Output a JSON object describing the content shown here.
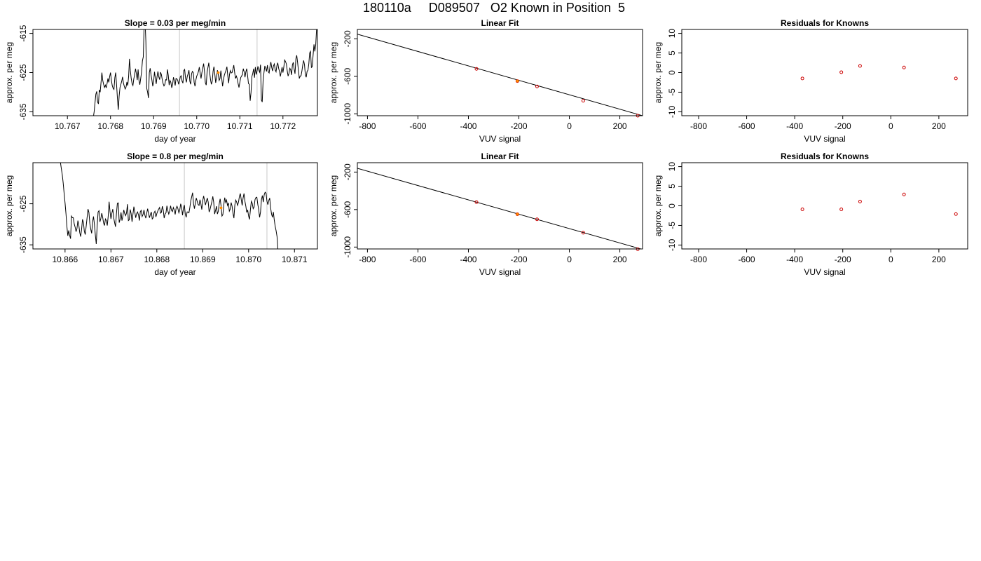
{
  "page_title": "180110a     D089507   O2 Known in Position  5",
  "colors": {
    "trace": "#000000",
    "marker": "#ff8c00",
    "point": "#cc0000",
    "vline": "#c8c8c8",
    "frame": "#000000"
  },
  "chart_data": [
    {
      "type": "line",
      "title": "Slope =  0.03  per meg/min",
      "xlabel": "day of year",
      "ylabel": "approx. per meg",
      "xlim": [
        10.7662,
        10.7728
      ],
      "ylim": [
        -636,
        -614
      ],
      "xticks": [
        "10.767",
        "10.768",
        "10.769",
        "10.770",
        "10.771",
        "10.772"
      ],
      "xtick_values": [
        10.767,
        10.768,
        10.769,
        10.77,
        10.771,
        10.772
      ],
      "yticks": [
        "-615",
        "-625",
        "-635"
      ],
      "ytick_values": [
        -615,
        -625,
        -635
      ],
      "vlines": [
        10.7696,
        10.7714
      ],
      "highlight_point": [
        10.7705,
        -625
      ],
      "series": [
        {
          "x_start": 10.7676,
          "x_step": 2e-05,
          "values": [
            -636.5,
            -635.0,
            -632.7,
            -630.5,
            -629.8,
            -632.5,
            -633.0,
            -629.4,
            -630.0,
            -627.5,
            -625.0,
            -627.0,
            -628.0,
            -628.8,
            -628.2,
            -628.9,
            -627.8,
            -626.5,
            -627.5,
            -626.0,
            -625.0,
            -627.0,
            -628.3,
            -629.0,
            -629.3,
            -626.3,
            -625.0,
            -628.0,
            -631.5,
            -634.5,
            -631.0,
            -628.8,
            -628.0,
            -627.2,
            -626.1,
            -627.7,
            -628.5,
            -629.2,
            -628.7,
            -627.4,
            -628.3,
            -626.0,
            -621.5,
            -624.5,
            -626.5,
            -627.8,
            -628.3,
            -626.6,
            -625.5,
            -624.0,
            -625.3,
            -626.9,
            -624.2,
            -627.0,
            -628.1,
            -626.5,
            -624.9,
            -622.0,
            -621.0,
            -613.0,
            -611.5,
            -617.0,
            -629.0,
            -630.0,
            -631.5,
            -625.0,
            -623.9,
            -625.6,
            -626.9,
            -628.5,
            -627.3,
            -624.8,
            -626.4,
            -627.9,
            -626.0,
            -624.7,
            -626.1,
            -626.8,
            -624.9,
            -625.5,
            -626.8,
            -627.8,
            -628.4,
            -628.0,
            -626.8,
            -626.9,
            -624.2,
            -625.7,
            -628.2,
            -627.0,
            -627.5,
            -628.9,
            -628.0,
            -626.2,
            -627.0,
            -628.3,
            -626.5,
            -626.6,
            -627.0,
            -628.0,
            -627.2,
            -626.0,
            -625.8,
            -627.2,
            -627.7,
            -624.5,
            -624.2,
            -626.4,
            -627.5,
            -626.0,
            -625.3,
            -624.4,
            -627.2,
            -628.0,
            -625.3,
            -624.7,
            -625.0,
            -627.5,
            -628.5,
            -626.9,
            -625.9,
            -625.4,
            -624.7,
            -623.6,
            -625.2,
            -626.5,
            -625.0,
            -623.8,
            -622.7,
            -624.7,
            -627.6,
            -628.2,
            -624.9,
            -623.7,
            -622.5,
            -625.0,
            -626.8,
            -628.0,
            -627.2,
            -624.6,
            -623.5,
            -625.5,
            -627.6,
            -626.2,
            -624.4,
            -625.5,
            -627.0,
            -626.5,
            -624.5,
            -626.5,
            -628.5,
            -626.8,
            -625.7,
            -625.0,
            -624.4,
            -623.5,
            -625.8,
            -627.7,
            -625.5,
            -624.5,
            -625.1,
            -625.0,
            -624.1,
            -623.1,
            -625.0,
            -626.5,
            -625.9,
            -626.6,
            -627.8,
            -628.8,
            -627.5,
            -626.3,
            -625.9,
            -625.5,
            -624.0,
            -624.8,
            -626.2,
            -624.8,
            -624.0,
            -625.8,
            -627.8,
            -628.0,
            -632.2,
            -630.0,
            -626.0,
            -625.2,
            -624.0,
            -626.3,
            -623.6,
            -625.5,
            -624.6,
            -623.4,
            -624.4,
            -624.9,
            -623.0,
            -632.0,
            -632.5,
            -627.0,
            -625.0,
            -623.3,
            -623.9,
            -624.7,
            -623.1,
            -624.8,
            -625.1,
            -623.4,
            -622.3,
            -623.7,
            -624.6,
            -623.3,
            -622.8,
            -624.3,
            -624.8,
            -623.2,
            -622.5,
            -623.9,
            -624.7,
            -626.0,
            -624.8,
            -623.6,
            -625.0,
            -623.6,
            -621.8,
            -622.2,
            -622.8,
            -624.6,
            -625.9,
            -625.2,
            -623.9,
            -624.3,
            -625.6,
            -623.0,
            -622.4,
            -624.1,
            -625.3,
            -621.5,
            -620.6,
            -622.4,
            -624.5,
            -626.5,
            -625.9,
            -625.8,
            -624.6,
            -623.0,
            -621.9,
            -623.0,
            -625.6,
            -626.2,
            -624.7,
            -624.4,
            -622.8,
            -620.0,
            -619.6,
            -623.7,
            -623.5,
            -620.5,
            -617.8,
            -619.6,
            -618.0,
            -614.0
          ]
        }
      ]
    },
    {
      "type": "scatter",
      "title": "Linear Fit",
      "xlabel": "VUV signal",
      "ylabel": "approx. per meg",
      "xlim": [
        -840,
        290
      ],
      "ylim": [
        -1020,
        -100
      ],
      "xticks": [
        "-800",
        "-600",
        "-400",
        "-200",
        "0",
        "200"
      ],
      "xtick_values": [
        -800,
        -600,
        -400,
        -200,
        0,
        200
      ],
      "yticks": [
        "-200",
        "-600",
        "-1000"
      ],
      "ytick_values": [
        -200,
        -600,
        -1000
      ],
      "fit_line": {
        "x": [
          -840,
          290
        ],
        "y": [
          -150,
          -1020
        ]
      },
      "points": {
        "x": [
          -368,
          -206,
          -128,
          55,
          271
        ],
        "y": [
          -521,
          -651,
          -708,
          -860,
          -1020
        ]
      },
      "highlight_point": [
        -206,
        -650
      ]
    },
    {
      "type": "scatter",
      "title": "Residuals for Knowns",
      "xlabel": "VUV signal",
      "ylabel": "approx. per meg",
      "xlim": [
        -870,
        320
      ],
      "ylim": [
        -11,
        11
      ],
      "xticks": [
        "-800",
        "-600",
        "-400",
        "-200",
        "0",
        "200"
      ],
      "xtick_values": [
        -800,
        -600,
        -400,
        -200,
        0,
        200
      ],
      "yticks": [
        "10",
        "5",
        "0",
        "-5",
        "-10"
      ],
      "ytick_values": [
        10,
        5,
        0,
        -5,
        -10
      ],
      "points": {
        "x": [
          -368,
          -206,
          -128,
          55,
          271
        ],
        "y": [
          -1.5,
          0.1,
          1.7,
          1.3,
          -1.5
        ]
      }
    },
    {
      "type": "line",
      "title": "Slope =  0.8  per meg/min",
      "xlabel": "day of year",
      "ylabel": "approx. per meg",
      "xlim": [
        10.8653,
        10.8715
      ],
      "ylim": [
        -636,
        -615
      ],
      "xticks": [
        "10.866",
        "10.867",
        "10.868",
        "10.869",
        "10.870",
        "10.871"
      ],
      "xtick_values": [
        10.866,
        10.867,
        10.868,
        10.869,
        10.87,
        10.871
      ],
      "yticks": [
        "-625",
        "-635"
      ],
      "ytick_values": [
        -625,
        -635
      ],
      "vlines": [
        10.8686,
        10.8704
      ],
      "highlight_point": [
        10.8694,
        -626
      ],
      "series": [
        {
          "x_start": 10.8659,
          "x_step": 2e-05,
          "values": [
            -615.0,
            -616.5,
            -618.0,
            -620.0,
            -622.5,
            -624.8,
            -627.4,
            -630.5,
            -632.8,
            -631.5,
            -632.7,
            -633.5,
            -628.0,
            -628.4,
            -628.4,
            -629.9,
            -630.7,
            -631.8,
            -631.0,
            -629.1,
            -630.2,
            -632.0,
            -633.0,
            -631.3,
            -628.8,
            -629.5,
            -631.7,
            -632.5,
            -630.5,
            -628.4,
            -626.3,
            -627.1,
            -629.8,
            -631.2,
            -632.2,
            -629.4,
            -628.1,
            -630.0,
            -632.6,
            -634.8,
            -630.3,
            -627.0,
            -626.7,
            -629.4,
            -628.6,
            -627.3,
            -628.3,
            -629.7,
            -630.3,
            -628.7,
            -629.1,
            -630.3,
            -628.1,
            -624.5,
            -626.9,
            -628.7,
            -627.3,
            -626.3,
            -628.4,
            -629.6,
            -630.6,
            -627.4,
            -624.9,
            -624.8,
            -629.6,
            -628.8,
            -627.1,
            -629.1,
            -628.0,
            -626.5,
            -627.4,
            -627.9,
            -627.2,
            -625.1,
            -629.1,
            -628.9,
            -626.4,
            -627.4,
            -629.4,
            -627.5,
            -625.7,
            -627.0,
            -628.4,
            -627.4,
            -627.0,
            -627.7,
            -629.1,
            -626.9,
            -626.6,
            -628.1,
            -627.6,
            -626.5,
            -627.8,
            -628.5,
            -627.3,
            -626.2,
            -627.4,
            -628.4,
            -627.6,
            -627.0,
            -628.7,
            -628.4,
            -627.2,
            -626.8,
            -628.2,
            -627.4,
            -626.8,
            -626.3,
            -625.9,
            -627.3,
            -627.1,
            -625.6,
            -626.5,
            -628.5,
            -627.5,
            -627.2,
            -625.5,
            -626.7,
            -627.5,
            -626.8,
            -625.5,
            -626.6,
            -626.9,
            -625.9,
            -626.5,
            -627.6,
            -626.1,
            -625.6,
            -626.2,
            -627.2,
            -626.5,
            -625.0,
            -625.9,
            -627.8,
            -626.1,
            -625.3,
            -627.5,
            -628.3,
            -627.0,
            -627.0,
            -627.2,
            -625.9,
            -624.3,
            -623.3,
            -622.3,
            -625.0,
            -626.2,
            -624.8,
            -623.6,
            -624.4,
            -625.2,
            -625.4,
            -624.0,
            -625.0,
            -626.4,
            -624.3,
            -623.1,
            -624.2,
            -625.3,
            -624.4,
            -623.6,
            -624.6,
            -627.0,
            -626.4,
            -625.4,
            -624.5,
            -623.2,
            -624.7,
            -627.5,
            -626.6,
            -625.6,
            -627.5,
            -626.8,
            -625.0,
            -623.8,
            -625.5,
            -628.0,
            -627.6,
            -625.2,
            -623.5,
            -624.7,
            -624.1,
            -625.4,
            -624.8,
            -626.8,
            -626.3,
            -624.7,
            -625.6,
            -627.3,
            -628.5,
            -625.3,
            -624.1,
            -624.6,
            -625.4,
            -624.6,
            -623.2,
            -622.5,
            -624.0,
            -625.4,
            -623.6,
            -622.5,
            -624.4,
            -625.6,
            -627.1,
            -626.5,
            -628.0,
            -628.8,
            -626.4,
            -624.4,
            -624.9,
            -626.2,
            -625.8,
            -624.0,
            -623.5,
            -623.4,
            -625.1,
            -626.4,
            -628.3,
            -627.0,
            -624.0,
            -623.0,
            -624.6,
            -622.8,
            -622.2,
            -622.4,
            -624.4,
            -625.2,
            -624.2,
            -623.6,
            -626.0,
            -627.5,
            -628.3,
            -627.0,
            -629.0,
            -630.5,
            -631.6,
            -633.0,
            -636.5
          ]
        }
      ]
    },
    {
      "type": "scatter",
      "title": "Linear Fit",
      "xlabel": "VUV signal",
      "ylabel": "approx. per meg",
      "xlim": [
        -840,
        290
      ],
      "ylim": [
        -1020,
        -100
      ],
      "xticks": [
        "-800",
        "-600",
        "-400",
        "-200",
        "0",
        "200"
      ],
      "xtick_values": [
        -800,
        -600,
        -400,
        -200,
        0,
        200
      ],
      "yticks": [
        "-200",
        "-600",
        "-1000"
      ],
      "ytick_values": [
        -200,
        -600,
        -1000
      ],
      "fit_line": {
        "x": [
          -840,
          290
        ],
        "y": [
          -160,
          -1025
        ]
      },
      "points": {
        "x": [
          -368,
          -206,
          -128,
          55,
          271
        ],
        "y": [
          -521,
          -650,
          -704,
          -847,
          -1023
        ]
      },
      "highlight_point": [
        -206,
        -650
      ]
    },
    {
      "type": "scatter",
      "title": "Residuals for Knowns",
      "xlabel": "VUV signal",
      "ylabel": "approx. per meg",
      "xlim": [
        -870,
        320
      ],
      "ylim": [
        -11,
        11
      ],
      "xticks": [
        "-800",
        "-600",
        "-400",
        "-200",
        "0",
        "200"
      ],
      "xtick_values": [
        -800,
        -600,
        -400,
        -200,
        0,
        200
      ],
      "yticks": [
        "10",
        "5",
        "0",
        "-5",
        "-10"
      ],
      "ytick_values": [
        10,
        5,
        0,
        -5,
        -10
      ],
      "points": {
        "x": [
          -368,
          -206,
          -128,
          55,
          271
        ],
        "y": [
          -0.9,
          -0.9,
          1.1,
          2.9,
          -2.1
        ]
      }
    }
  ]
}
